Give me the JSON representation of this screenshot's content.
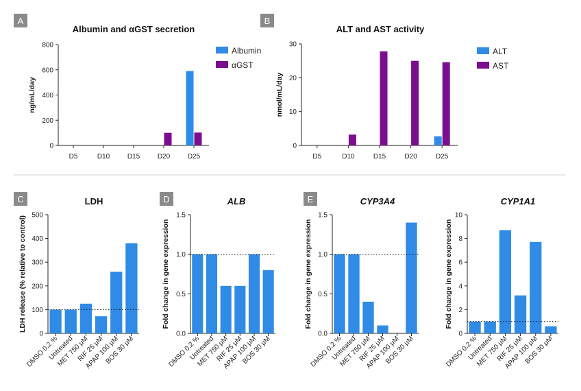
{
  "colors": {
    "blue": "#2f8be6",
    "purple": "#7a0e8e",
    "label_bg": "#8a8a8a",
    "axis": "#222222"
  },
  "chart_data": [
    {
      "id": "A",
      "panel_label": "A",
      "type": "bar",
      "title": "Albumin and αGST secretion",
      "ylabel": "ng/mL/day",
      "ylim": [
        0,
        800
      ],
      "yticks": [
        "0",
        "200",
        "400",
        "600",
        "800"
      ],
      "categories": [
        "D5",
        "D10",
        "D15",
        "D20",
        "D25"
      ],
      "series": [
        {
          "name": "Albumin",
          "color": "#2f8be6",
          "values": [
            0,
            0,
            0,
            0,
            590
          ]
        },
        {
          "name": "αGST",
          "color": "#7a0e8e",
          "values": [
            0,
            0,
            0,
            100,
            102
          ]
        }
      ],
      "legend": "right"
    },
    {
      "id": "B",
      "panel_label": "B",
      "type": "bar",
      "title": "ALT and AST activity",
      "ylabel": "nmol/mL/day",
      "ylim": [
        0,
        30
      ],
      "yticks": [
        "0",
        "10",
        "20",
        "30"
      ],
      "categories": [
        "D5",
        "D10",
        "D15",
        "D20",
        "D25"
      ],
      "series": [
        {
          "name": "ALT",
          "color": "#2f8be6",
          "values": [
            0,
            0,
            0,
            0,
            2.7
          ]
        },
        {
          "name": "AST",
          "color": "#7a0e8e",
          "values": [
            0,
            3.2,
            27.8,
            25.0,
            24.6
          ]
        }
      ],
      "legend": "right"
    },
    {
      "id": "C",
      "panel_label": "C",
      "type": "bar",
      "title": "LDH",
      "title_italic": false,
      "ylabel": "LDH release (% relative to control)",
      "ylim": [
        0,
        500
      ],
      "yticks": [
        "0",
        "100",
        "200",
        "300",
        "400",
        "500"
      ],
      "categories": [
        "DMSO 0.2 %",
        "Untreated",
        "MET 750 μM",
        "RIF 25 μM",
        "APAP 100 μM",
        "BOS 30 μM"
      ],
      "values": [
        100,
        100,
        125,
        72,
        260,
        380
      ],
      "reference_line": 100
    },
    {
      "id": "D",
      "panel_label": "D",
      "type": "bar",
      "title": "ALB",
      "title_italic": true,
      "ylabel": "Fold change in gene expression",
      "ylim": [
        0,
        1.5
      ],
      "yticks": [
        "0.0",
        "0.5",
        "1.0",
        "1.5"
      ],
      "categories": [
        "DMSO 0.2 %",
        "Untreated",
        "MET 750 μM",
        "RIF 25 μM",
        "APAP 100 μM",
        "BOS 30 μM"
      ],
      "values": [
        1.0,
        1.0,
        0.6,
        0.6,
        1.0,
        0.8
      ],
      "reference_line": 1.0
    },
    {
      "id": "E1",
      "panel_label": "E",
      "type": "bar",
      "title": "CYP3A4",
      "title_italic": true,
      "ylabel": "Fold change in gene expression",
      "ylim": [
        0,
        1.5
      ],
      "yticks": [
        "0.0",
        "0.5",
        "1.0",
        "1.5"
      ],
      "categories": [
        "DMSO 0.2 %",
        "Untreated",
        "MET 750 μM",
        "RIF 25 μM",
        "APAP 100 μM",
        "BOS 30 μM"
      ],
      "values": [
        1.0,
        1.0,
        0.4,
        0.1,
        0,
        1.4
      ],
      "reference_line": 1.0
    },
    {
      "id": "E2",
      "panel_label": "",
      "type": "bar",
      "title": "CYP1A1",
      "title_italic": true,
      "ylabel": "Fold change in gene expression",
      "ylim": [
        0,
        10
      ],
      "yticks": [
        "0",
        "2",
        "4",
        "6",
        "8",
        "10"
      ],
      "categories": [
        "DMSO 0.2 %",
        "Untreated",
        "MET 750 μM",
        "RIF 25 μM",
        "APAP 100 μM",
        "BOS 30 μM"
      ],
      "values": [
        1.0,
        1.0,
        8.7,
        3.2,
        7.7,
        0.6
      ],
      "reference_line": 1.0
    }
  ]
}
